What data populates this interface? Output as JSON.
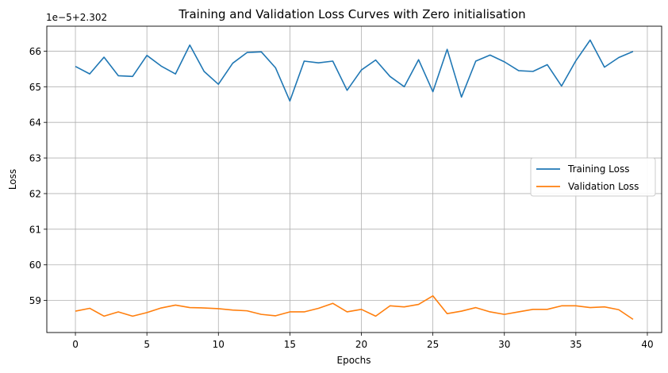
{
  "chart_data": {
    "type": "line",
    "title": "Training and Validation Loss Curves with Zero initialisation",
    "xlabel": "Epochs",
    "ylabel": "Loss",
    "offset_text": "1e−5+2.302",
    "xlim": [
      -2,
      41
    ],
    "ylim": [
      58.1,
      66.7
    ],
    "x_ticks": [
      0,
      5,
      10,
      15,
      20,
      25,
      30,
      35,
      40
    ],
    "y_ticks": [
      59,
      60,
      61,
      62,
      63,
      64,
      65,
      66
    ],
    "grid": true,
    "legend_position": "center-right",
    "x": [
      0,
      1,
      2,
      3,
      4,
      5,
      6,
      7,
      8,
      9,
      10,
      11,
      12,
      13,
      14,
      15,
      16,
      17,
      18,
      19,
      20,
      21,
      22,
      23,
      24,
      25,
      26,
      27,
      28,
      29,
      30,
      31,
      32,
      33,
      34,
      35,
      36,
      37,
      38,
      39
    ],
    "series": [
      {
        "name": "Training Loss",
        "color": "#1f77b4",
        "values": [
          65.57,
          65.36,
          65.83,
          65.31,
          65.29,
          65.88,
          65.58,
          65.36,
          66.17,
          65.43,
          65.07,
          65.66,
          65.96,
          65.98,
          65.53,
          64.6,
          65.72,
          65.67,
          65.72,
          64.9,
          65.47,
          65.75,
          65.29,
          65.0,
          65.76,
          64.86,
          66.05,
          64.71,
          65.72,
          65.89,
          65.7,
          65.45,
          65.43,
          65.62,
          65.02,
          65.73,
          66.31,
          65.55,
          65.82,
          65.99
        ]
      },
      {
        "name": "Validation Loss",
        "color": "#ff7f0e",
        "values": [
          58.7,
          58.78,
          58.56,
          58.68,
          58.56,
          58.66,
          58.79,
          58.87,
          58.8,
          58.79,
          58.77,
          58.73,
          58.71,
          58.61,
          58.57,
          58.68,
          58.68,
          58.78,
          58.92,
          58.68,
          58.75,
          58.56,
          58.85,
          58.82,
          58.89,
          59.13,
          58.63,
          58.7,
          58.8,
          58.68,
          58.61,
          58.68,
          58.75,
          58.75,
          58.85,
          58.85,
          58.8,
          58.82,
          58.74,
          58.47
        ]
      }
    ]
  }
}
